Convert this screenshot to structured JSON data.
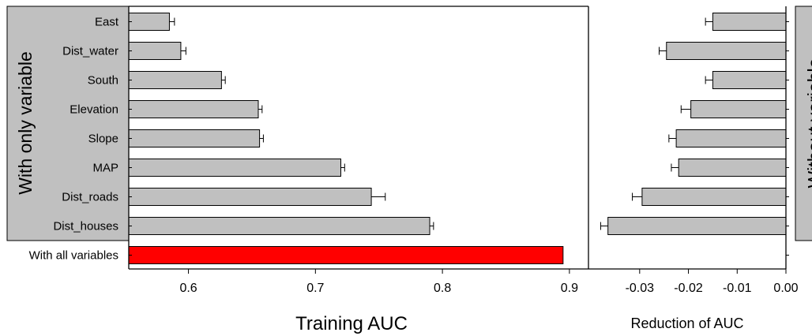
{
  "chart_data": [
    {
      "type": "bar",
      "orientation": "horizontal",
      "categories": [
        "East",
        "Dist_water",
        "South",
        "Elevation",
        "Slope",
        "MAP",
        "Dist_roads",
        "Dist_houses",
        "With all variables"
      ],
      "values": [
        0.585,
        0.594,
        0.626,
        0.655,
        0.656,
        0.72,
        0.744,
        0.79,
        0.895
      ],
      "errors": [
        0.004,
        0.004,
        0.003,
        0.003,
        0.003,
        0.003,
        0.011,
        0.003,
        0.0
      ],
      "xlabel": "Training AUC",
      "xlim": [
        0.553,
        0.915
      ],
      "xticks": [
        "0.6",
        "0.7",
        "0.8",
        "0.9"
      ],
      "strip_label": "With only variable",
      "bar_color": "#c0c0c0",
      "highlight_color": "#ff0000",
      "highlight_category": "With all variables",
      "grid": false
    },
    {
      "type": "bar",
      "orientation": "horizontal",
      "categories": [
        "East",
        "Dist_water",
        "South",
        "Elevation",
        "Slope",
        "MAP",
        "Dist_roads",
        "Dist_houses"
      ],
      "values": [
        -0.015,
        -0.0245,
        -0.015,
        -0.0195,
        -0.0225,
        -0.022,
        -0.0295,
        -0.0365
      ],
      "errors": [
        0.0015,
        0.0015,
        0.0015,
        0.002,
        0.0015,
        0.0015,
        0.002,
        0.0015
      ],
      "xlabel": "Reduction of AUC",
      "xlim": [
        -0.0405,
        0.0
      ],
      "xticks": [
        "-0.03",
        "-0.02",
        "-0.01",
        "0.00"
      ],
      "strip_label": "Without variable",
      "bar_color": "#c0c0c0",
      "grid": false
    }
  ]
}
